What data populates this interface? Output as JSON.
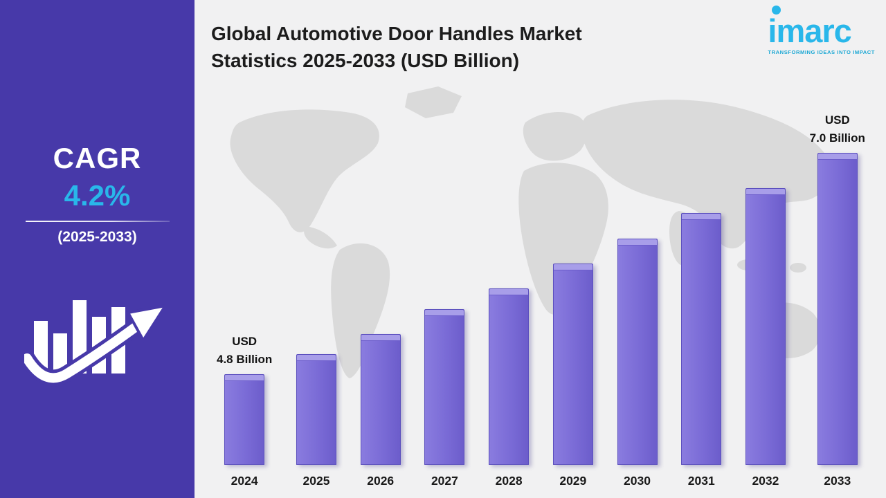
{
  "title": {
    "line1": "Global Automotive Door Handles Market",
    "line2": "Statistics 2025-2033 (USD Billion)"
  },
  "logo": {
    "name": "imarc",
    "tagline": "TRANSFORMING IDEAS INTO IMPACT"
  },
  "sidebar": {
    "cagr_label": "CAGR",
    "cagr_value": "4.2%",
    "period": "(2025-2033)"
  },
  "colors": {
    "panel_purple": "#4739A9",
    "bar_purple": "#7A6BD6",
    "bar_top": "#A89EE9",
    "accent_cyan": "#29B7EA",
    "map_gray": "#DADADA",
    "background": "#F1F1F2",
    "text_dark": "#1C1C1C"
  },
  "chart_data": {
    "type": "bar",
    "title": "Global Automotive Door Handles Market Statistics 2025-2033 (USD Billion)",
    "unit": "USD Billion",
    "cagr": "4.2%",
    "cagr_period": "2025-2033",
    "categories": [
      "2024",
      "2025",
      "2026",
      "2027",
      "2028",
      "2029",
      "2030",
      "2031",
      "2032",
      "2033"
    ],
    "values": [
      4.8,
      5.0,
      5.2,
      5.45,
      5.65,
      5.9,
      6.15,
      6.4,
      6.65,
      7.0
    ],
    "ylim": [
      3.9,
      7.2
    ],
    "grid": false,
    "legend": false,
    "annotations": [
      {
        "index": 0,
        "lines": [
          "USD",
          "4.8 Billion"
        ]
      },
      {
        "index": 9,
        "lines": [
          "USD",
          "7.0 Billion"
        ]
      }
    ]
  }
}
